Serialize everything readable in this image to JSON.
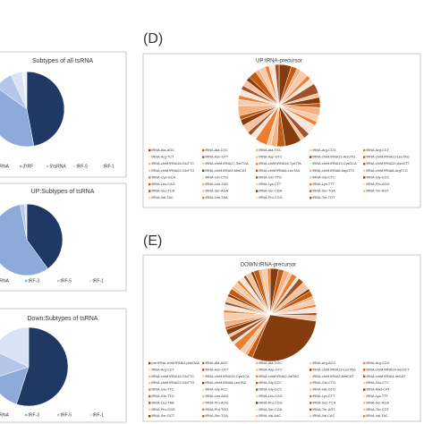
{
  "chart_data": [
    {
      "type": "pie",
      "title": "Subtypes of all tsRNA",
      "categories": [
        "tsRNA",
        "3'tRF",
        "5'tsRNA",
        "tRF-5",
        "tRF-1"
      ],
      "values": [
        47,
        38,
        8,
        5,
        2
      ],
      "colors": [
        "#1f3864",
        "#8eaadb",
        "#b4c6e7",
        "#dae3f3",
        "#f2f2f2"
      ]
    },
    {
      "type": "pie",
      "title": "UP:Subtypes of tsRNA",
      "categories": [
        "tsRNA",
        "tRF-3",
        "tRF-5",
        "tRF-1"
      ],
      "values": [
        40,
        57,
        2,
        1
      ],
      "colors": [
        "#1f3864",
        "#8eaadb",
        "#b4c6e7",
        "#dae3f3"
      ]
    },
    {
      "type": "pie",
      "title": "Down:Subtypes of tsRNA",
      "categories": [
        "tsRNA",
        "tRF-3",
        "tRF-5",
        "tRF-1"
      ],
      "values": [
        55,
        15,
        12,
        18
      ],
      "colors": [
        "#1f3864",
        "#8eaadb",
        "#b4c6e7",
        "#dae3f3"
      ]
    },
    {
      "type": "pie",
      "label": "(D)",
      "title": "UP:tRNA-precursor",
      "categories": [
        "tRNA-Ala-AGC",
        "tRNA-Ala-CGC",
        "tRNA-Ala-TGC",
        "tRNA-Arg-CCG",
        "tRNA-Arg-CCT",
        "tRNA-Arg-TCT",
        "tRNA-Asn-GTT",
        "tRNA-Asp-GTC",
        "tRNA-chrM.tRNA11-HisGTG",
        "tRNA-chrM.tRNA13-LeuTAG",
        "tRNA-chrM.tRNA16-GluTTC",
        "tRNA-chrM.tRNA17-SerTGA",
        "tRNA-chrM.tRNA18-TyrGTA",
        "tRNA-chrM.tRNA19-CysGCA",
        "tRNA-chrM.tRNA20-AsnGTT",
        "tRNA-chrM.tRNA22-GlnTTG",
        "tRNA-chrM.tRNA3-MetCAT",
        "tRNA-chrM.tRNA5-LeuTAA",
        "tRNA-chrM.tRNA6-AspGTC",
        "tRNA-chrM.tRNA8-ArgTCG",
        "tRNA-Cys-GCA",
        "tRNA-Gln-CTG",
        "tRNA-Gln-TTG",
        "tRNA-Glu-CTC",
        "tRNA-Gly-GCC",
        "tRNA-Leu-CAG",
        "tRNA-Leu-TAG",
        "tRNA-Lys-CTT",
        "tRNA-Lys-TTT",
        "tRNA-Pro-AGG",
        "tRNA-Sec-TCA",
        "tRNA-Ser-AGA",
        "tRNA-Ser-CGA",
        "tRNA-Ser-TGA",
        "tRNA-Thr-AGT",
        "tRNA-Val-TAC",
        "tRNA-Leu-TAA",
        "tRNA-Pro-CGG",
        "tRNA-Thr-TGT"
      ],
      "values": [
        6,
        3,
        2,
        4,
        2,
        3,
        5,
        2,
        3,
        2,
        4,
        3,
        2,
        5,
        3,
        2,
        8,
        4,
        3,
        2,
        6,
        3,
        2,
        4,
        3,
        2,
        5,
        3,
        2,
        3,
        2,
        3,
        2,
        4,
        2,
        3,
        2,
        3,
        2
      ],
      "palette": [
        "#843c0c",
        "#c55a11",
        "#f4b183",
        "#f8cbad",
        "#ed7d31",
        "#fbe5d6",
        "#a0522d",
        "#f6c49c"
      ]
    },
    {
      "type": "pie",
      "label": "(E)",
      "title": "DOWN:tRNA-precursor",
      "categories": [
        "pre-tRNA-chrM.tRNA1-pheGAA",
        "tRNA-Ala-AGC",
        "tRNA-Ala-CGC",
        "tRNA-Arg-ACG",
        "tRNA-Arg-CCG",
        "tRNA-Arg-CCT",
        "tRNA-Asn-GTT",
        "tRNA-Asp-GTC",
        "tRNA-chrM.tRNA13-LeuTAG",
        "tRNA-chrM.tRNA14-SerGCT",
        "tRNA-chrM.tRNA16-GluTTC",
        "tRNA-chrM.tRNA19-CysGCA",
        "tRNA-chrM.tRNA2-ValTAC",
        "tRNA-chrM.tRNA3-MetCAT",
        "tRNA-chrM.tRNA4-IleGAT",
        "tRNA-chrM.tRNA22-GlnTTG",
        "tRNA-chrM.tRNA8-LeuTAA",
        "tRNA-Gly-CCC",
        "tRNA-Gln-CTG",
        "tRNA-Glu-CTC",
        "tRNA-Glu-TTC",
        "tRNA-Gly-ACC",
        "tRNA-Gly-GCC",
        "tRNA-His-GTG",
        "tRNA-iMet-CAT",
        "tRNA-Gln-TTG",
        "tRNA-Leu-AAG",
        "tRNA-Leu-CAG",
        "tRNA-Lys-CTT",
        "tRNA-Lys-TTT",
        "tRNA-Leu-TAA",
        "tRNA-Pro-AGG",
        "tRNA-Pro-CGG",
        "tRNA-Sec-TCA",
        "tRNA-Ser-AGA",
        "tRNA-Pro-GGG",
        "tRNA-Pro-TGG",
        "tRNA-Ser-CGA",
        "tRNA-Thr-AGT",
        "tRNA-Thr-CGT",
        "tRNA-Ser-GCT",
        "tRNA-Ser-TGA",
        "tRNA-Val-AAC",
        "tRNA-Val-CAC",
        "tRNA-Val-TAC"
      ],
      "values": [
        3,
        2,
        2,
        1,
        2,
        1,
        2,
        3,
        1,
        2,
        1,
        2,
        1,
        2,
        1,
        2,
        30,
        2,
        1,
        2,
        3,
        1,
        2,
        1,
        2,
        1,
        2,
        3,
        1,
        2,
        1,
        2,
        1,
        2,
        1,
        2,
        1,
        2,
        1,
        2,
        1,
        2,
        1,
        2,
        1
      ],
      "palette": [
        "#843c0c",
        "#c55a11",
        "#f4b183",
        "#f8cbad",
        "#ed7d31",
        "#fbe5d6",
        "#a0522d",
        "#f6c49c"
      ]
    }
  ]
}
